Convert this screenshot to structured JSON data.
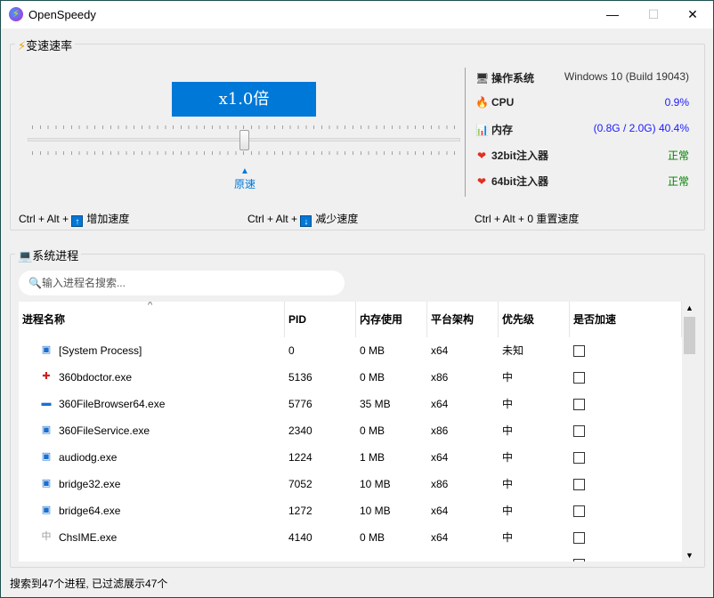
{
  "window": {
    "title": "OpenSpeedy",
    "minimize": "—",
    "maximize": "☐",
    "close": "✕"
  },
  "speed": {
    "group_label": "变速速率",
    "display": "x1.0倍",
    "slider_value": 1.0,
    "origin_label": "原速",
    "origin_marker": "▲",
    "hotkeys": [
      {
        "prefix": "Ctrl + Alt +",
        "key": "↑",
        "label": "增加速度"
      },
      {
        "prefix": "Ctrl + Alt +",
        "key": "↓",
        "label": "减少速度"
      },
      {
        "prefix": "Ctrl + Alt + 0",
        "label": "重置速度"
      }
    ]
  },
  "system": [
    {
      "icon": "monitor-icon",
      "glyph": "🖥",
      "label": "操作系统",
      "value": "Windows 10 (Build 19043)",
      "color": "#333333"
    },
    {
      "icon": "fire-icon",
      "glyph": "🔥",
      "label": "CPU",
      "value": "0.9%",
      "color": "#1a1aff"
    },
    {
      "icon": "chart-icon",
      "glyph": "📊",
      "label": "内存",
      "value": "(0.8G / 2.0G) 40.4%",
      "color": "#1a1aff"
    },
    {
      "icon": "heart-icon",
      "glyph": "❤",
      "label": "32bit注入器",
      "value": "正常",
      "color": "#008000"
    },
    {
      "icon": "heart-icon",
      "glyph": "❤",
      "label": "64bit注入器",
      "value": "正常",
      "color": "#008000"
    }
  ],
  "processes": {
    "group_label": "系统进程",
    "search_placeholder": "输入进程名搜索...",
    "sort_indicator": "^",
    "columns": [
      "进程名称",
      "PID",
      "内存使用",
      "平台架构",
      "优先级",
      "是否加速"
    ],
    "rows": [
      {
        "icon": "window-icon",
        "glyph": "▣",
        "name": "[System Process]",
        "pid": "0",
        "mem": "0 MB",
        "arch": "x64",
        "prio": "未知",
        "accel": false
      },
      {
        "icon": "360-doctor-icon",
        "glyph": "✚",
        "name": "360bdoctor.exe",
        "pid": "5136",
        "mem": "0 MB",
        "arch": "x86",
        "prio": "中",
        "accel": false
      },
      {
        "icon": "folder-icon",
        "glyph": "▬",
        "name": "360FileBrowser64.exe",
        "pid": "5776",
        "mem": "35 MB",
        "arch": "x64",
        "prio": "中",
        "accel": false
      },
      {
        "icon": "app-icon",
        "glyph": "▣",
        "name": "360FileService.exe",
        "pid": "2340",
        "mem": "0 MB",
        "arch": "x86",
        "prio": "中",
        "accel": false
      },
      {
        "icon": "app-icon",
        "glyph": "▣",
        "name": "audiodg.exe",
        "pid": "1224",
        "mem": "1 MB",
        "arch": "x64",
        "prio": "中",
        "accel": false
      },
      {
        "icon": "app-icon",
        "glyph": "▣",
        "name": "bridge32.exe",
        "pid": "7052",
        "mem": "10 MB",
        "arch": "x86",
        "prio": "中",
        "accel": false
      },
      {
        "icon": "app-icon",
        "glyph": "▣",
        "name": "bridge64.exe",
        "pid": "1272",
        "mem": "10 MB",
        "arch": "x64",
        "prio": "中",
        "accel": false
      },
      {
        "icon": "ime-icon",
        "glyph": "中",
        "name": "ChsIME.exe",
        "pid": "4140",
        "mem": "0 MB",
        "arch": "x64",
        "prio": "中",
        "accel": false
      }
    ]
  },
  "status": "搜索到47个进程, 已过滤展示47个"
}
